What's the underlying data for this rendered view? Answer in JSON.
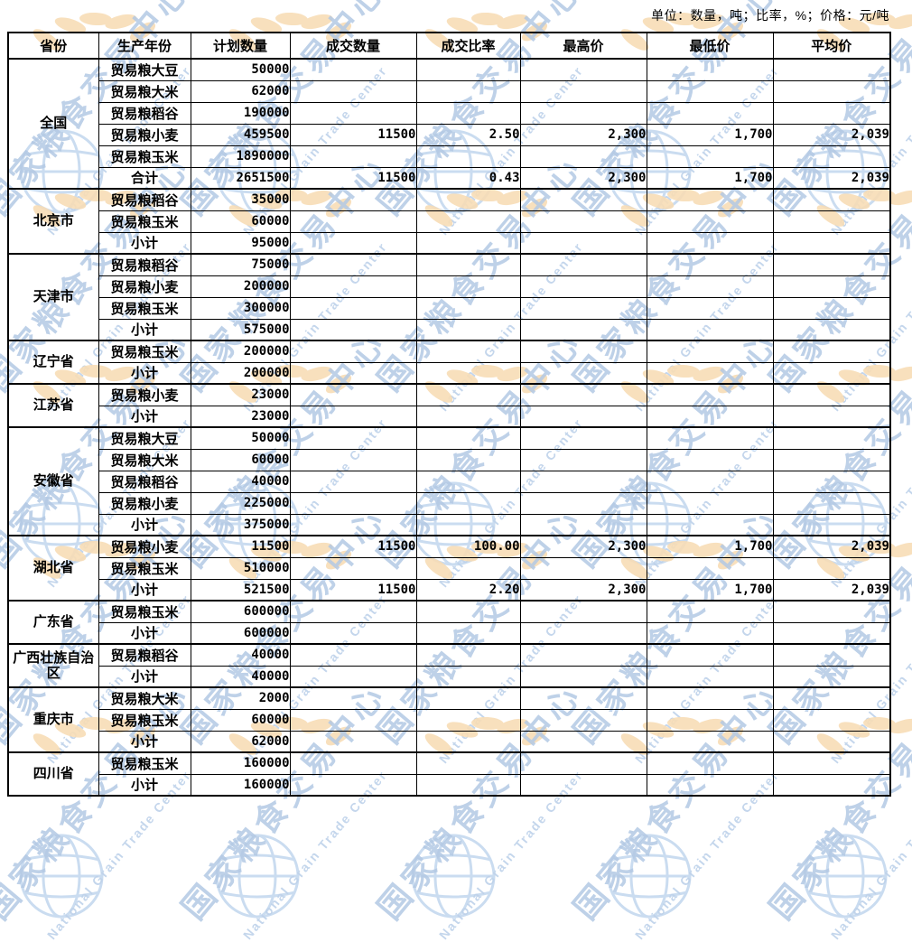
{
  "meta": {
    "unit_note": "单位：数量，吨；比率，%；价格：元/吨"
  },
  "watermark": {
    "cjk": "国家粮食交易中心",
    "en": "National Grain Trade Center",
    "blue": "#b3c9e4",
    "globe_blue": "#cadcf0",
    "wheat_orange": "#f8ddb6"
  },
  "table": {
    "headers": [
      "省份",
      "生产年份",
      "计划数量",
      "成交数量",
      "成交比率",
      "最高价",
      "最低价",
      "平均价"
    ],
    "blocks": [
      {
        "province": "全国",
        "rows": [
          {
            "year": "贸易粮大豆",
            "plan": "50000",
            "deal": "",
            "ratio": "",
            "high": "",
            "low": "",
            "avg": ""
          },
          {
            "year": "贸易粮大米",
            "plan": "62000",
            "deal": "",
            "ratio": "",
            "high": "",
            "low": "",
            "avg": ""
          },
          {
            "year": "贸易粮稻谷",
            "plan": "190000",
            "deal": "",
            "ratio": "",
            "high": "",
            "low": "",
            "avg": ""
          },
          {
            "year": "贸易粮小麦",
            "plan": "459500",
            "deal": "11500",
            "ratio": "2.50",
            "high": "2,300",
            "low": "1,700",
            "avg": "2,039"
          },
          {
            "year": "贸易粮玉米",
            "plan": "1890000",
            "deal": "",
            "ratio": "",
            "high": "",
            "low": "",
            "avg": ""
          },
          {
            "year": "合计",
            "plan": "2651500",
            "deal": "11500",
            "ratio": "0.43",
            "high": "2,300",
            "low": "1,700",
            "avg": "2,039"
          }
        ]
      },
      {
        "province": "北京市",
        "rows": [
          {
            "year": "贸易粮稻谷",
            "plan": "35000",
            "deal": "",
            "ratio": "",
            "high": "",
            "low": "",
            "avg": ""
          },
          {
            "year": "贸易粮玉米",
            "plan": "60000",
            "deal": "",
            "ratio": "",
            "high": "",
            "low": "",
            "avg": ""
          },
          {
            "year": "小计",
            "plan": "95000",
            "deal": "",
            "ratio": "",
            "high": "",
            "low": "",
            "avg": ""
          }
        ]
      },
      {
        "province": "天津市",
        "rows": [
          {
            "year": "贸易粮稻谷",
            "plan": "75000",
            "deal": "",
            "ratio": "",
            "high": "",
            "low": "",
            "avg": ""
          },
          {
            "year": "贸易粮小麦",
            "plan": "200000",
            "deal": "",
            "ratio": "",
            "high": "",
            "low": "",
            "avg": ""
          },
          {
            "year": "贸易粮玉米",
            "plan": "300000",
            "deal": "",
            "ratio": "",
            "high": "",
            "low": "",
            "avg": ""
          },
          {
            "year": "小计",
            "plan": "575000",
            "deal": "",
            "ratio": "",
            "high": "",
            "low": "",
            "avg": ""
          }
        ]
      },
      {
        "province": "辽宁省",
        "rows": [
          {
            "year": "贸易粮玉米",
            "plan": "200000",
            "deal": "",
            "ratio": "",
            "high": "",
            "low": "",
            "avg": ""
          },
          {
            "year": "小计",
            "plan": "200000",
            "deal": "",
            "ratio": "",
            "high": "",
            "low": "",
            "avg": ""
          }
        ]
      },
      {
        "province": "江苏省",
        "rows": [
          {
            "year": "贸易粮小麦",
            "plan": "23000",
            "deal": "",
            "ratio": "",
            "high": "",
            "low": "",
            "avg": ""
          },
          {
            "year": "小计",
            "plan": "23000",
            "deal": "",
            "ratio": "",
            "high": "",
            "low": "",
            "avg": ""
          }
        ]
      },
      {
        "province": "安徽省",
        "rows": [
          {
            "year": "贸易粮大豆",
            "plan": "50000",
            "deal": "",
            "ratio": "",
            "high": "",
            "low": "",
            "avg": ""
          },
          {
            "year": "贸易粮大米",
            "plan": "60000",
            "deal": "",
            "ratio": "",
            "high": "",
            "low": "",
            "avg": ""
          },
          {
            "year": "贸易粮稻谷",
            "plan": "40000",
            "deal": "",
            "ratio": "",
            "high": "",
            "low": "",
            "avg": ""
          },
          {
            "year": "贸易粮小麦",
            "plan": "225000",
            "deal": "",
            "ratio": "",
            "high": "",
            "low": "",
            "avg": ""
          },
          {
            "year": "小计",
            "plan": "375000",
            "deal": "",
            "ratio": "",
            "high": "",
            "low": "",
            "avg": ""
          }
        ]
      },
      {
        "province": "湖北省",
        "rows": [
          {
            "year": "贸易粮小麦",
            "plan": "11500",
            "deal": "11500",
            "ratio": "100.00",
            "high": "2,300",
            "low": "1,700",
            "avg": "2,039"
          },
          {
            "year": "贸易粮玉米",
            "plan": "510000",
            "deal": "",
            "ratio": "",
            "high": "",
            "low": "",
            "avg": ""
          },
          {
            "year": "小计",
            "plan": "521500",
            "deal": "11500",
            "ratio": "2.20",
            "high": "2,300",
            "low": "1,700",
            "avg": "2,039"
          }
        ]
      },
      {
        "province": "广东省",
        "rows": [
          {
            "year": "贸易粮玉米",
            "plan": "600000",
            "deal": "",
            "ratio": "",
            "high": "",
            "low": "",
            "avg": ""
          },
          {
            "year": "小计",
            "plan": "600000",
            "deal": "",
            "ratio": "",
            "high": "",
            "low": "",
            "avg": ""
          }
        ]
      },
      {
        "province": "广西壮族自治区",
        "rows": [
          {
            "year": "贸易粮稻谷",
            "plan": "40000",
            "deal": "",
            "ratio": "",
            "high": "",
            "low": "",
            "avg": ""
          },
          {
            "year": "小计",
            "plan": "40000",
            "deal": "",
            "ratio": "",
            "high": "",
            "low": "",
            "avg": ""
          }
        ]
      },
      {
        "province": "重庆市",
        "rows": [
          {
            "year": "贸易粮大米",
            "plan": "2000",
            "deal": "",
            "ratio": "",
            "high": "",
            "low": "",
            "avg": ""
          },
          {
            "year": "贸易粮玉米",
            "plan": "60000",
            "deal": "",
            "ratio": "",
            "high": "",
            "low": "",
            "avg": ""
          },
          {
            "year": "小计",
            "plan": "62000",
            "deal": "",
            "ratio": "",
            "high": "",
            "low": "",
            "avg": ""
          }
        ]
      },
      {
        "province": "四川省",
        "rows": [
          {
            "year": "贸易粮玉米",
            "plan": "160000",
            "deal": "",
            "ratio": "",
            "high": "",
            "low": "",
            "avg": ""
          },
          {
            "year": "小计",
            "plan": "160000",
            "deal": "",
            "ratio": "",
            "high": "",
            "low": "",
            "avg": ""
          }
        ]
      }
    ]
  }
}
